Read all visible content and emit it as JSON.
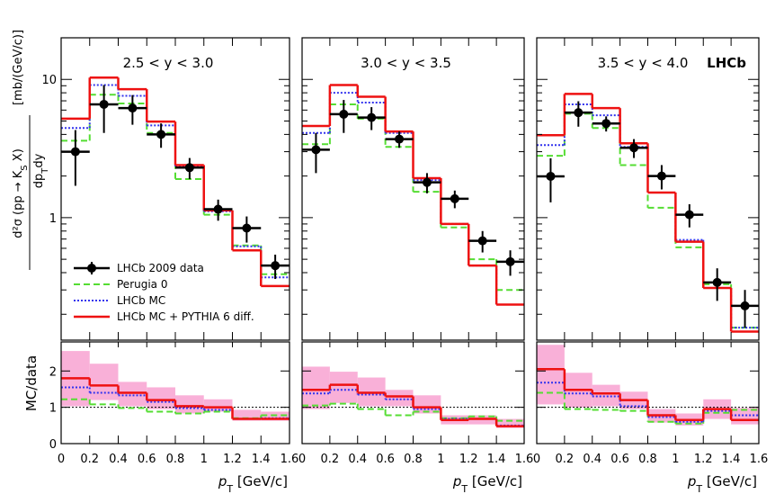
{
  "chart_data": {
    "type": "step",
    "bins": [
      0,
      0.2,
      0.4,
      0.6,
      0.8,
      1,
      1.2,
      1.4,
      1.6
    ],
    "xlim": [
      0,
      1.6
    ],
    "xticks": [
      0,
      0.2,
      0.4,
      0.6,
      0.8,
      1,
      1.2,
      1.4,
      1.6
    ],
    "ylim": [
      0.13,
      20
    ],
    "log": true,
    "yticks": [
      1,
      10
    ],
    "yminorticks": [
      0.2,
      0.3,
      0.4,
      0.5,
      0.6,
      0.7,
      0.8,
      0.9,
      2,
      3,
      4,
      5,
      6,
      7,
      8,
      9
    ],
    "ratio": {
      "ylim": [
        0,
        2.8
      ],
      "yticks": [
        0,
        1,
        2
      ],
      "refline": 1,
      "band_color": "#f9b0d8",
      "ylabel": "MC/data"
    },
    "xlabel": [
      "p",
      "T",
      "  [GeV/c]"
    ],
    "ylabel": {
      "numerator": [
        "d²σ (pp → K",
        "S",
        " X)"
      ],
      "denominator": [
        "dp",
        "T",
        "dy"
      ],
      "unit": "[mb/(GeV/c)]"
    },
    "legend": "lower left",
    "annotation": "LHCb",
    "series_style": [
      {
        "name": "LHCb 2009 data",
        "color": "#000000",
        "dash": "solid"
      },
      {
        "name": "Perugia 0",
        "color": "#55dd33",
        "dash": "dashed"
      },
      {
        "name": "LHCb MC",
        "color": "#3333ee",
        "dash": "dotted"
      },
      {
        "name": "LHCb MC + PYTHIA 6 diff.",
        "color": "#ee1111",
        "dash": "solid"
      }
    ],
    "panels": [
      {
        "title": "2.5 < y < 3.0",
        "data": [
          3.0,
          6.6,
          6.2,
          4.0,
          2.3,
          1.15,
          0.84,
          0.45
        ],
        "errors": [
          1.3,
          2.5,
          1.5,
          0.8,
          0.4,
          0.2,
          0.18,
          0.09
        ],
        "series": [
          [
            3.6,
            7.75,
            6.7,
            4.1,
            1.9,
            1.05,
            0.63,
            0.39
          ],
          [
            4.45,
            9.1,
            7.6,
            4.65,
            2.35,
            1.11,
            0.62,
            0.37
          ],
          [
            5.2,
            10.3,
            8.5,
            4.95,
            2.4,
            1.13,
            0.58,
            0.32
          ]
        ],
        "ratios": [
          [
            1.22,
            1.08,
            0.98,
            0.88,
            0.83,
            0.88,
            0.7,
            0.78
          ],
          [
            1.55,
            1.4,
            1.33,
            1.15,
            0.98,
            0.93,
            0.68,
            0.7
          ],
          [
            1.8,
            1.6,
            1.4,
            1.2,
            1.03,
            1.0,
            0.68,
            0.68
          ]
        ],
        "band_low": [
          1.03,
          1.2,
          1.03,
          0.95,
          0.83,
          0.88,
          0.63,
          0.63
        ],
        "band_high": [
          2.55,
          2.2,
          1.7,
          1.55,
          1.33,
          1.22,
          0.93,
          0.88
        ]
      },
      {
        "title": "3.0 < y < 3.5",
        "data": [
          3.1,
          5.6,
          5.3,
          3.7,
          1.8,
          1.37,
          0.68,
          0.48
        ],
        "errors": [
          1.0,
          1.5,
          1.0,
          0.5,
          0.3,
          0.2,
          0.12,
          0.1
        ],
        "series": [
          [
            3.4,
            6.6,
            5.2,
            3.25,
            1.54,
            0.85,
            0.5,
            0.3
          ],
          [
            4.1,
            8.0,
            6.8,
            4.1,
            1.87,
            0.9,
            0.45,
            0.235
          ],
          [
            4.6,
            9.1,
            7.5,
            4.2,
            1.93,
            0.9,
            0.45,
            0.235
          ]
        ],
        "ratios": [
          [
            1.05,
            1.1,
            0.95,
            0.78,
            0.88,
            0.7,
            0.75,
            0.63
          ],
          [
            1.38,
            1.48,
            1.35,
            1.22,
            0.95,
            0.68,
            0.68,
            0.5
          ],
          [
            1.48,
            1.62,
            1.4,
            1.3,
            1.0,
            0.65,
            0.68,
            0.48
          ]
        ],
        "band_low": [
          0.95,
          1.12,
          1.03,
          1.03,
          0.83,
          0.53,
          0.53,
          0.43
        ],
        "band_high": [
          2.12,
          1.98,
          1.82,
          1.48,
          1.33,
          0.78,
          0.78,
          0.68
        ]
      },
      {
        "title": "3.5 < y < 4.0",
        "data": [
          1.99,
          5.75,
          4.8,
          3.2,
          2.0,
          1.05,
          0.34,
          0.23
        ],
        "errors": [
          0.7,
          1.2,
          0.6,
          0.5,
          0.4,
          0.2,
          0.09,
          0.07
        ],
        "series": [
          [
            2.8,
            5.65,
            4.45,
            2.4,
            1.18,
            0.61,
            0.33,
            0.16
          ],
          [
            3.35,
            6.6,
            5.5,
            3.25,
            1.52,
            0.69,
            0.31,
            0.16
          ],
          [
            3.95,
            7.85,
            6.2,
            3.45,
            1.52,
            0.67,
            0.31,
            0.15
          ]
        ],
        "ratios": [
          [
            1.4,
            0.95,
            0.93,
            0.9,
            0.6,
            0.55,
            0.85,
            0.93
          ],
          [
            1.68,
            1.38,
            1.3,
            1.03,
            0.73,
            0.6,
            0.9,
            0.78
          ],
          [
            2.05,
            1.48,
            1.38,
            1.2,
            0.78,
            0.65,
            0.95,
            0.65
          ]
        ],
        "band_low": [
          1.08,
          1.0,
          1.03,
          0.95,
          0.58,
          0.5,
          0.68,
          0.53
        ],
        "band_high": [
          2.72,
          1.95,
          1.62,
          1.43,
          0.95,
          0.83,
          1.22,
          0.98
        ]
      }
    ]
  }
}
